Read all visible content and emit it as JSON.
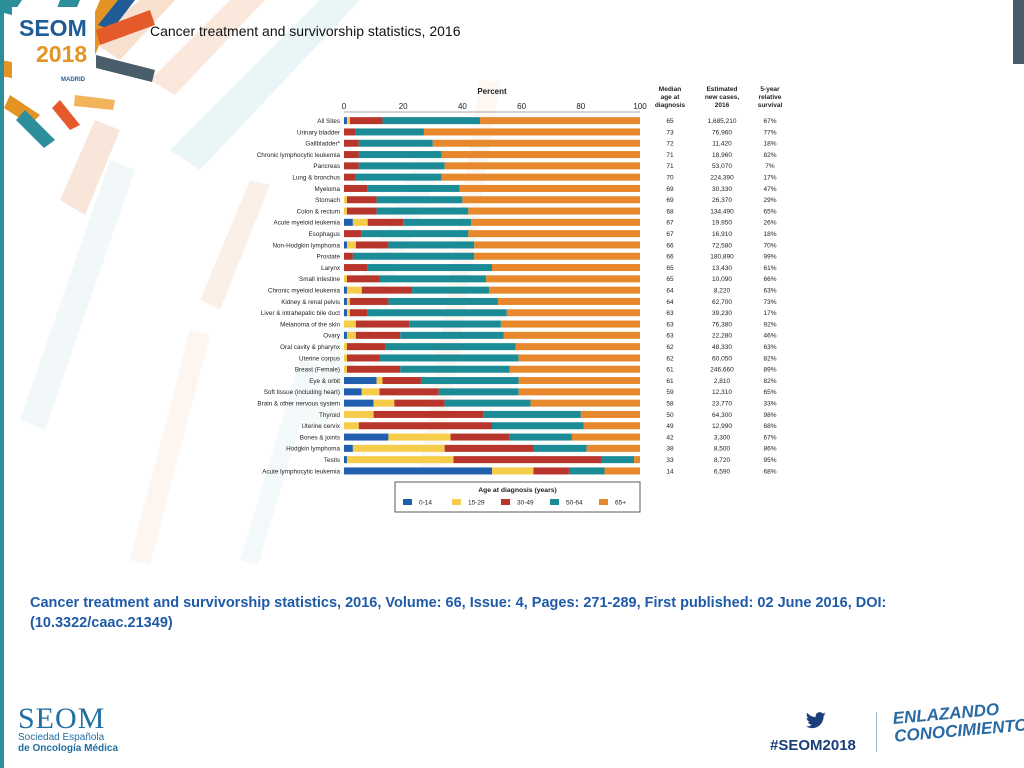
{
  "slide": {
    "title": "Cancer treatment and survivorship statistics, 2016",
    "caption": "Cancer treatment and survivorship statistics, 2016, Volume: 66, Issue: 4, Pages: 271-289, First published: 02 June 2016, DOI: (10.3322/caac.21349)"
  },
  "branding": {
    "logo_line1": "SEOM",
    "logo_line2": "2018",
    "logo_line3": "MADRID",
    "wordmark": "SEOM",
    "sub_line1": "Sociedad Española",
    "sub_line2": "de Oncología Médica",
    "hashtag": "#SEOM2018",
    "enlazando_line1": "ENLAZANDO",
    "enlazando_line2": "CONOCIMIENTO",
    "brand_blue": "#1f5c95",
    "brand_orange": "#e39424"
  },
  "chart_data": {
    "type": "bar",
    "stacked": true,
    "orientation": "horizontal",
    "axis_title": "Percent",
    "xlim": [
      0,
      100
    ],
    "ticks": [
      0,
      20,
      40,
      60,
      80,
      100
    ],
    "column_headers": {
      "median_age": [
        "Median",
        "age at",
        "diagnosis"
      ],
      "new_cases": [
        "Estimated",
        "new cases,",
        "2016"
      ],
      "survival": [
        "5-year",
        "relative",
        "survival"
      ]
    },
    "legend_title": "Age at diagnosis (years)",
    "series": [
      {
        "name": "0-14",
        "color": "#1f5fae"
      },
      {
        "name": "15-29",
        "color": "#f5cd4a"
      },
      {
        "name": "30-49",
        "color": "#b8352b"
      },
      {
        "name": "50-64",
        "color": "#1b8b96"
      },
      {
        "name": "65+",
        "color": "#e6882b"
      }
    ],
    "rows": [
      {
        "label": "All Sites",
        "values": [
          1,
          1,
          11,
          33,
          54
        ],
        "median": "65",
        "cases": "1,685,210",
        "survival": "67%"
      },
      {
        "label": "Urinary bladder",
        "values": [
          0,
          0,
          4,
          23,
          73
        ],
        "median": "73",
        "cases": "76,960",
        "survival": "77%"
      },
      {
        "label": "Gallbladder*",
        "values": [
          0,
          0,
          5,
          25,
          70
        ],
        "median": "72",
        "cases": "11,420",
        "survival": "18%"
      },
      {
        "label": "Chronic lymphocytic leukemia",
        "values": [
          0,
          0,
          5,
          28,
          67
        ],
        "median": "71",
        "cases": "18,960",
        "survival": "82%"
      },
      {
        "label": "Pancreas",
        "values": [
          0,
          0,
          5,
          29,
          66
        ],
        "median": "71",
        "cases": "53,070",
        "survival": "7%"
      },
      {
        "label": "Lung & bronchus",
        "values": [
          0,
          0,
          4,
          29,
          67
        ],
        "median": "70",
        "cases": "224,390",
        "survival": "17%"
      },
      {
        "label": "Myeloma",
        "values": [
          0,
          0,
          8,
          31,
          61
        ],
        "median": "69",
        "cases": "30,330",
        "survival": "47%"
      },
      {
        "label": "Stomach",
        "values": [
          0,
          1,
          10,
          29,
          60
        ],
        "median": "69",
        "cases": "26,370",
        "survival": "29%"
      },
      {
        "label": "Colon & rectum",
        "values": [
          0,
          1,
          10,
          31,
          58
        ],
        "median": "68",
        "cases": "134,490",
        "survival": "65%"
      },
      {
        "label": "Acute myeloid leukemia",
        "values": [
          3,
          5,
          12,
          23,
          57
        ],
        "median": "67",
        "cases": "19,950",
        "survival": "26%"
      },
      {
        "label": "Esophagus",
        "values": [
          0,
          0,
          6,
          36,
          58
        ],
        "median": "67",
        "cases": "16,910",
        "survival": "18%"
      },
      {
        "label": "Non-Hodgkin lymphoma",
        "values": [
          1,
          3,
          11,
          29,
          56
        ],
        "median": "66",
        "cases": "72,580",
        "survival": "70%"
      },
      {
        "label": "Prostate",
        "values": [
          0,
          0,
          3,
          41,
          56
        ],
        "median": "66",
        "cases": "180,890",
        "survival": "99%"
      },
      {
        "label": "Larynx",
        "values": [
          0,
          0,
          8,
          42,
          50
        ],
        "median": "65",
        "cases": "13,430",
        "survival": "61%"
      },
      {
        "label": "Small intestine",
        "values": [
          0,
          1,
          11,
          36,
          52
        ],
        "median": "65",
        "cases": "10,090",
        "survival": "66%"
      },
      {
        "label": "Chronic myeloid leukemia",
        "values": [
          1,
          5,
          17,
          26,
          51
        ],
        "median": "64",
        "cases": "8,220",
        "survival": "63%"
      },
      {
        "label": "Kidney & renal pelvis",
        "values": [
          1,
          1,
          13,
          37,
          48
        ],
        "median": "64",
        "cases": "62,700",
        "survival": "73%"
      },
      {
        "label": "Liver & intrahepatic bile duct",
        "values": [
          1,
          1,
          6,
          47,
          45
        ],
        "median": "63",
        "cases": "39,230",
        "survival": "17%"
      },
      {
        "label": "Melanoma of the skin",
        "values": [
          0,
          4,
          18,
          31,
          47
        ],
        "median": "63",
        "cases": "76,380",
        "survival": "92%"
      },
      {
        "label": "Ovary",
        "values": [
          1,
          3,
          15,
          35,
          46
        ],
        "median": "63",
        "cases": "22,280",
        "survival": "46%"
      },
      {
        "label": "Oral cavity & pharynx",
        "values": [
          0,
          1,
          13,
          44,
          42
        ],
        "median": "62",
        "cases": "48,330",
        "survival": "63%"
      },
      {
        "label": "Uterine corpus",
        "values": [
          0,
          1,
          11,
          47,
          41
        ],
        "median": "62",
        "cases": "60,050",
        "survival": "82%"
      },
      {
        "label": "Breast (Female)",
        "values": [
          0,
          1,
          18,
          37,
          44
        ],
        "median": "61",
        "cases": "246,660",
        "survival": "89%"
      },
      {
        "label": "Eye & orbit",
        "values": [
          11,
          2,
          13,
          33,
          41
        ],
        "median": "61",
        "cases": "2,810",
        "survival": "82%"
      },
      {
        "label": "Soft tissue (including heart)",
        "values": [
          6,
          6,
          20,
          27,
          41
        ],
        "median": "59",
        "cases": "12,310",
        "survival": "65%"
      },
      {
        "label": "Brain & other nervous system",
        "values": [
          10,
          7,
          17,
          29,
          37
        ],
        "median": "58",
        "cases": "23,770",
        "survival": "33%"
      },
      {
        "label": "Thyroid",
        "values": [
          0,
          10,
          37,
          33,
          20
        ],
        "median": "50",
        "cases": "64,300",
        "survival": "98%"
      },
      {
        "label": "Uterine cervix",
        "values": [
          0,
          5,
          45,
          31,
          19
        ],
        "median": "49",
        "cases": "12,990",
        "survival": "68%"
      },
      {
        "label": "Bones & joints",
        "values": [
          15,
          21,
          20,
          21,
          23
        ],
        "median": "42",
        "cases": "3,300",
        "survival": "67%"
      },
      {
        "label": "Hodgkin lymphoma",
        "values": [
          3,
          31,
          30,
          18,
          18
        ],
        "median": "38",
        "cases": "8,500",
        "survival": "86%"
      },
      {
        "label": "Testis",
        "values": [
          1,
          36,
          50,
          11,
          2
        ],
        "median": "33",
        "cases": "8,720",
        "survival": "95%"
      },
      {
        "label": "Acute lymphocytic leukemia",
        "values": [
          50,
          14,
          12,
          12,
          12
        ],
        "median": "14",
        "cases": "6,590",
        "survival": "68%"
      }
    ]
  }
}
